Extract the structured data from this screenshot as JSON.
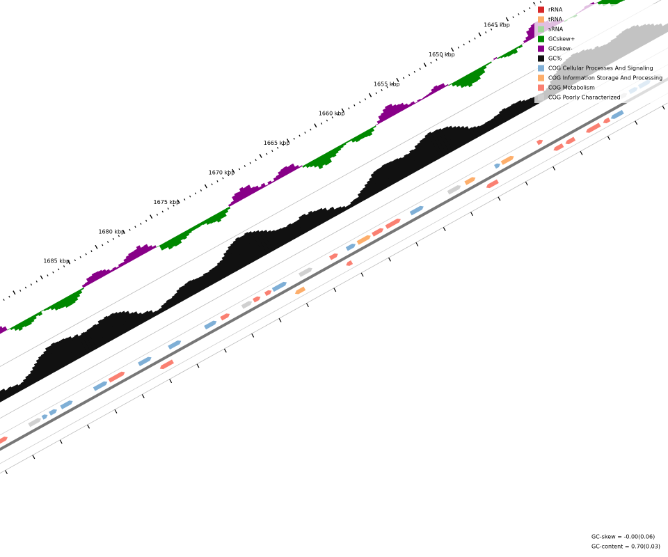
{
  "scale_labels": [
    "1645 kbp",
    "1650 kbp",
    "1655 kbp",
    "1660 kbp",
    "1665 kbp",
    "1670 kbp",
    "1675 kbp",
    "1680 kbp",
    "1685 kbp"
  ],
  "legend": [
    {
      "label": "rRNA",
      "color": "#d62728"
    },
    {
      "label": "tRNA",
      "color": "#fdae6b"
    },
    {
      "label": "sRNA",
      "color": "#a1d99b"
    },
    {
      "label": "GCskew+",
      "color": "#008800"
    },
    {
      "label": "GCskew-",
      "color": "#880088"
    },
    {
      "label": "GC%",
      "color": "#111111"
    },
    {
      "label": "COG Cellular Processes And Signaling",
      "color": "#7fafd6"
    },
    {
      "label": "COG Information Storage And Processing",
      "color": "#fdae6b"
    },
    {
      "label": "COG Metabolism",
      "color": "#fa8072"
    },
    {
      "label": "COG Poorly Characterized",
      "color": "#d0d0d0"
    }
  ],
  "footer": [
    "GC-skew = -0.00(0.06)",
    "GC-content = 0.70(0.03)"
  ]
}
